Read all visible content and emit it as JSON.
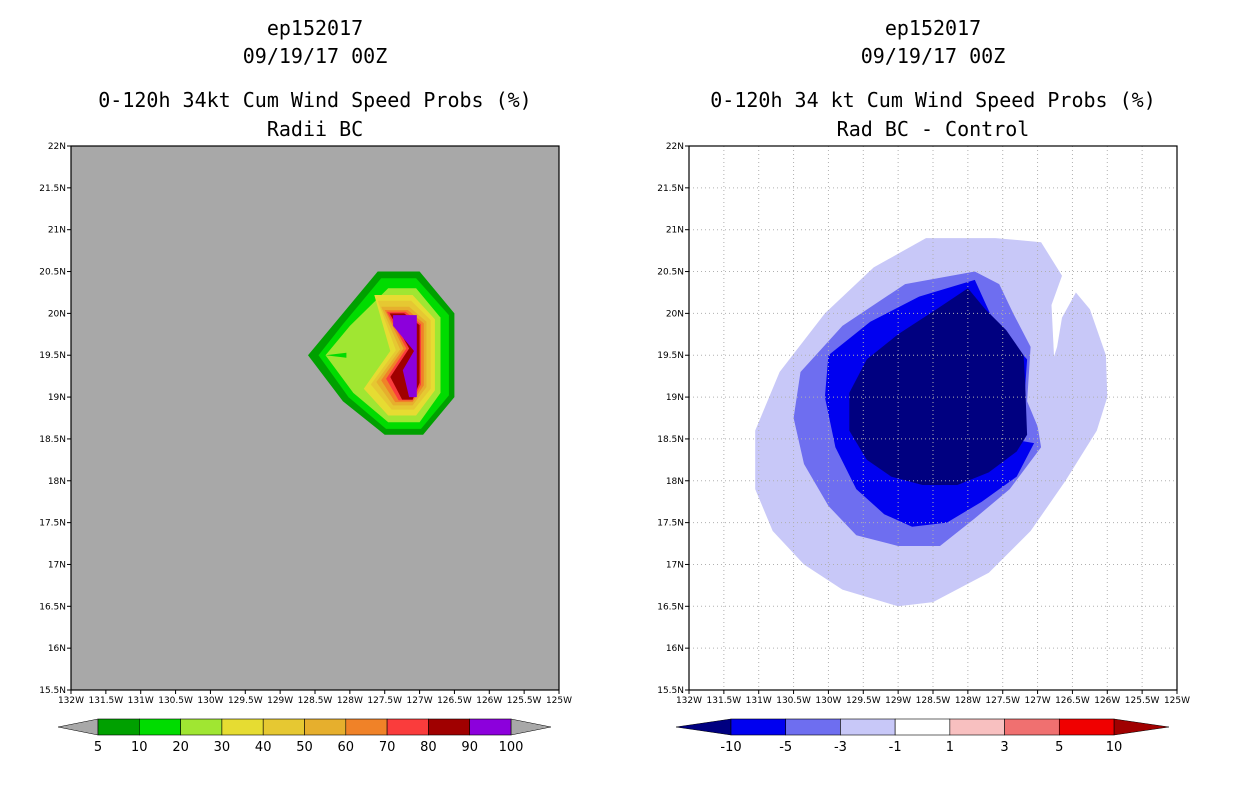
{
  "chart_data": [
    {
      "type": "contour-map",
      "storm_id": "ep152017",
      "datetime": "09/19/17 00Z",
      "title": "0-120h 34kt Cum Wind Speed Probs (%)",
      "subtitle": "Radii BC",
      "x_ticks": [
        "132W",
        "131.5W",
        "131W",
        "130.5W",
        "130W",
        "129.5W",
        "129W",
        "128.5W",
        "128W",
        "127.5W",
        "127W",
        "126.5W",
        "126W",
        "125.5W",
        "125W"
      ],
      "y_ticks": [
        "15.5N",
        "16N",
        "16.5N",
        "17N",
        "17.5N",
        "18N",
        "18.5N",
        "19N",
        "19.5N",
        "20N",
        "20.5N",
        "21N",
        "21.5N",
        "22N"
      ],
      "lon_range": [
        -132,
        -125
      ],
      "lat_range": [
        15.5,
        22
      ],
      "background": "#a8a8a8",
      "grid": false,
      "colorbar": {
        "labels": [
          "5",
          "10",
          "20",
          "30",
          "40",
          "50",
          "60",
          "70",
          "80",
          "90",
          "100"
        ],
        "colors": [
          "#00a000",
          "#00dc00",
          "#a0e632",
          "#e6dc32",
          "#e6c832",
          "#e6af2d",
          "#f08228",
          "#fa3c3c",
          "#a00000",
          "#8c00dc"
        ]
      },
      "contours": [
        {
          "level": 5,
          "color": "#00a000",
          "lonlat": [
            [
              -128.6,
              19.5
            ],
            [
              -128.2,
              19.9
            ],
            [
              -127.6,
              20.5
            ],
            [
              -127.0,
              20.5
            ],
            [
              -126.5,
              20.0
            ],
            [
              -126.5,
              19.0
            ],
            [
              -126.95,
              18.55
            ],
            [
              -127.5,
              18.55
            ],
            [
              -128.1,
              18.95
            ]
          ]
        },
        {
          "level": 10,
          "color": "#00dc00",
          "lonlat": [
            [
              -128.45,
              19.5
            ],
            [
              -128.1,
              19.87
            ],
            [
              -127.55,
              20.42
            ],
            [
              -127.05,
              20.42
            ],
            [
              -126.58,
              19.98
            ],
            [
              -126.58,
              19.02
            ],
            [
              -126.98,
              18.62
            ],
            [
              -127.48,
              18.62
            ],
            [
              -128.02,
              19.0
            ]
          ]
        },
        {
          "level": 20,
          "color": "#a0e632",
          "lonlat": [
            [
              -128.35,
              19.5
            ],
            [
              -128.0,
              19.85
            ],
            [
              -127.45,
              20.3
            ],
            [
              -127.05,
              20.3
            ],
            [
              -126.7,
              19.95
            ],
            [
              -126.7,
              19.05
            ],
            [
              -127.0,
              18.7
            ],
            [
              -127.45,
              18.7
            ],
            [
              -127.95,
              19.05
            ]
          ]
        },
        {
          "level": 30,
          "color": "#e6dc32",
          "lonlat": [
            [
              -127.65,
              20.22
            ],
            [
              -127.1,
              20.22
            ],
            [
              -126.78,
              19.93
            ],
            [
              -126.78,
              19.08
            ],
            [
              -127.05,
              18.78
            ],
            [
              -127.45,
              18.78
            ],
            [
              -127.8,
              19.1
            ],
            [
              -127.42,
              19.55
            ]
          ]
        },
        {
          "level": 40,
          "color": "#e6c832",
          "lonlat": [
            [
              -127.6,
              20.15
            ],
            [
              -127.12,
              20.15
            ],
            [
              -126.84,
              19.92
            ],
            [
              -126.84,
              19.1
            ],
            [
              -127.08,
              18.85
            ],
            [
              -127.4,
              18.85
            ],
            [
              -127.7,
              19.15
            ],
            [
              -127.34,
              19.56
            ]
          ]
        },
        {
          "level": 50,
          "color": "#e6af2d",
          "lonlat": [
            [
              -127.55,
              20.08
            ],
            [
              -127.15,
              20.08
            ],
            [
              -126.9,
              19.9
            ],
            [
              -126.9,
              19.12
            ],
            [
              -127.1,
              18.9
            ],
            [
              -127.38,
              18.9
            ],
            [
              -127.62,
              19.18
            ],
            [
              -127.28,
              19.57
            ]
          ]
        },
        {
          "level": 60,
          "color": "#f08228",
          "lonlat": [
            [
              -127.5,
              20.04
            ],
            [
              -127.17,
              20.04
            ],
            [
              -126.94,
              19.88
            ],
            [
              -126.94,
              19.14
            ],
            [
              -127.1,
              18.94
            ],
            [
              -127.35,
              18.94
            ],
            [
              -127.55,
              19.2
            ],
            [
              -127.23,
              19.58
            ]
          ]
        },
        {
          "level": 70,
          "color": "#fa3c3c",
          "lonlat": [
            [
              -127.47,
              20.02
            ],
            [
              -127.2,
              20.02
            ],
            [
              -126.98,
              19.87
            ],
            [
              -126.98,
              19.15
            ],
            [
              -127.1,
              18.96
            ],
            [
              -127.3,
              18.96
            ],
            [
              -127.48,
              19.22
            ],
            [
              -127.19,
              19.58
            ]
          ]
        },
        {
          "level": 80,
          "color": "#a00000",
          "lonlat": [
            [
              -127.43,
              20.0
            ],
            [
              -127.22,
              20.0
            ],
            [
              -127.0,
              19.86
            ],
            [
              -127.0,
              19.17
            ],
            [
              -127.1,
              18.97
            ],
            [
              -127.25,
              18.97
            ],
            [
              -127.42,
              19.24
            ],
            [
              -127.15,
              19.58
            ]
          ]
        },
        {
          "level": 90,
          "color": "#8c00dc",
          "lonlat": [
            [
              -127.38,
              19.98
            ],
            [
              -127.04,
              19.98
            ],
            [
              -127.04,
              19.0
            ],
            [
              -127.15,
              19.0
            ],
            [
              -127.24,
              19.32
            ],
            [
              -127.08,
              19.55
            ],
            [
              -127.38,
              19.85
            ]
          ]
        }
      ],
      "small_blob": {
        "color": "#00dc00",
        "lonlat": [
          [
            -128.35,
            19.5
          ],
          [
            -128.05,
            19.47
          ],
          [
            -128.05,
            19.53
          ]
        ]
      }
    },
    {
      "type": "contour-map",
      "storm_id": "ep152017",
      "datetime": "09/19/17 00Z",
      "title": "0-120h 34 kt Cum Wind Speed Probs (%)",
      "subtitle": "Rad BC - Control",
      "x_ticks": [
        "132W",
        "131.5W",
        "131W",
        "130.5W",
        "130W",
        "129.5W",
        "129W",
        "128.5W",
        "128W",
        "127.5W",
        "127W",
        "126.5W",
        "126W",
        "125.5W",
        "125W"
      ],
      "y_ticks": [
        "15.5N",
        "16N",
        "16.5N",
        "17N",
        "17.5N",
        "18N",
        "18.5N",
        "19N",
        "19.5N",
        "20N",
        "20.5N",
        "21N",
        "21.5N",
        "22N"
      ],
      "lon_range": [
        -132,
        -125
      ],
      "lat_range": [
        15.5,
        22
      ],
      "background": "#ffffff",
      "grid": true,
      "colorbar": {
        "labels": [
          "-10",
          "-5",
          "-3",
          "-1",
          "1",
          "3",
          "5",
          "10"
        ],
        "colors": [
          "#000080",
          "#0000f0",
          "#6e6ef0",
          "#c8c8f8",
          "#ffffff",
          "#f8c0c0",
          "#f07070",
          "#f00000",
          "#a00000"
        ]
      },
      "contours": [
        {
          "level": -1,
          "color": "#c8c8f8",
          "lonlat": [
            [
              -129.0,
              16.5
            ],
            [
              -128.5,
              16.55
            ],
            [
              -127.7,
              16.9
            ],
            [
              -127.1,
              17.4
            ],
            [
              -126.6,
              18.0
            ],
            [
              -126.15,
              18.6
            ],
            [
              -126.0,
              19.0
            ],
            [
              -126.02,
              19.5
            ],
            [
              -126.25,
              20.05
            ],
            [
              -126.45,
              20.25
            ],
            [
              -126.65,
              19.95
            ],
            [
              -126.72,
              19.6
            ],
            [
              -126.95,
              19.0
            ],
            [
              -127.0,
              18.6
            ],
            [
              -126.75,
              19.25
            ],
            [
              -126.8,
              20.1
            ],
            [
              -126.65,
              20.45
            ],
            [
              -126.95,
              20.85
            ],
            [
              -127.6,
              20.9
            ],
            [
              -128.6,
              20.9
            ],
            [
              -129.35,
              20.55
            ],
            [
              -130.05,
              20.0
            ],
            [
              -130.7,
              19.3
            ],
            [
              -131.05,
              18.6
            ],
            [
              -131.05,
              17.9
            ],
            [
              -130.8,
              17.4
            ],
            [
              -130.35,
              17.0
            ],
            [
              -129.8,
              16.7
            ]
          ]
        },
        {
          "level": -3,
          "color": "#6e6ef0",
          "lonlat": [
            [
              -129.0,
              17.22
            ],
            [
              -128.4,
              17.22
            ],
            [
              -127.9,
              17.55
            ],
            [
              -127.4,
              17.9
            ],
            [
              -126.95,
              18.4
            ],
            [
              -127.0,
              18.65
            ],
            [
              -127.15,
              18.95
            ],
            [
              -127.1,
              19.6
            ],
            [
              -127.35,
              20.0
            ],
            [
              -127.55,
              20.35
            ],
            [
              -127.9,
              20.5
            ],
            [
              -128.9,
              20.35
            ],
            [
              -129.8,
              19.85
            ],
            [
              -130.4,
              19.3
            ],
            [
              -130.5,
              18.75
            ],
            [
              -130.35,
              18.2
            ],
            [
              -130.0,
              17.7
            ],
            [
              -129.6,
              17.35
            ]
          ]
        },
        {
          "level": -5,
          "color": "#0000f0",
          "lonlat": [
            [
              -128.8,
              17.45
            ],
            [
              -128.3,
              17.5
            ],
            [
              -127.8,
              17.75
            ],
            [
              -127.3,
              18.05
            ],
            [
              -127.05,
              18.45
            ],
            [
              -127.4,
              18.5
            ],
            [
              -127.2,
              18.85
            ],
            [
              -127.15,
              19.45
            ],
            [
              -127.6,
              19.85
            ],
            [
              -127.9,
              20.4
            ],
            [
              -128.7,
              20.2
            ],
            [
              -129.4,
              19.9
            ],
            [
              -130.0,
              19.5
            ],
            [
              -130.05,
              19.0
            ],
            [
              -129.9,
              18.4
            ],
            [
              -129.6,
              17.9
            ],
            [
              -129.2,
              17.6
            ]
          ]
        },
        {
          "level": -10,
          "color": "#000080",
          "lonlat": [
            [
              -128.65,
              17.95
            ],
            [
              -128.15,
              17.95
            ],
            [
              -127.7,
              18.1
            ],
            [
              -127.3,
              18.35
            ],
            [
              -127.15,
              18.55
            ],
            [
              -127.18,
              19.2
            ],
            [
              -127.2,
              19.5
            ],
            [
              -127.45,
              19.8
            ],
            [
              -127.75,
              20.05
            ],
            [
              -128.0,
              20.3
            ],
            [
              -128.45,
              20.05
            ],
            [
              -129.0,
              19.75
            ],
            [
              -129.45,
              19.45
            ],
            [
              -129.7,
              19.05
            ],
            [
              -129.7,
              18.6
            ],
            [
              -129.45,
              18.25
            ],
            [
              -129.1,
              18.05
            ]
          ]
        }
      ]
    }
  ]
}
